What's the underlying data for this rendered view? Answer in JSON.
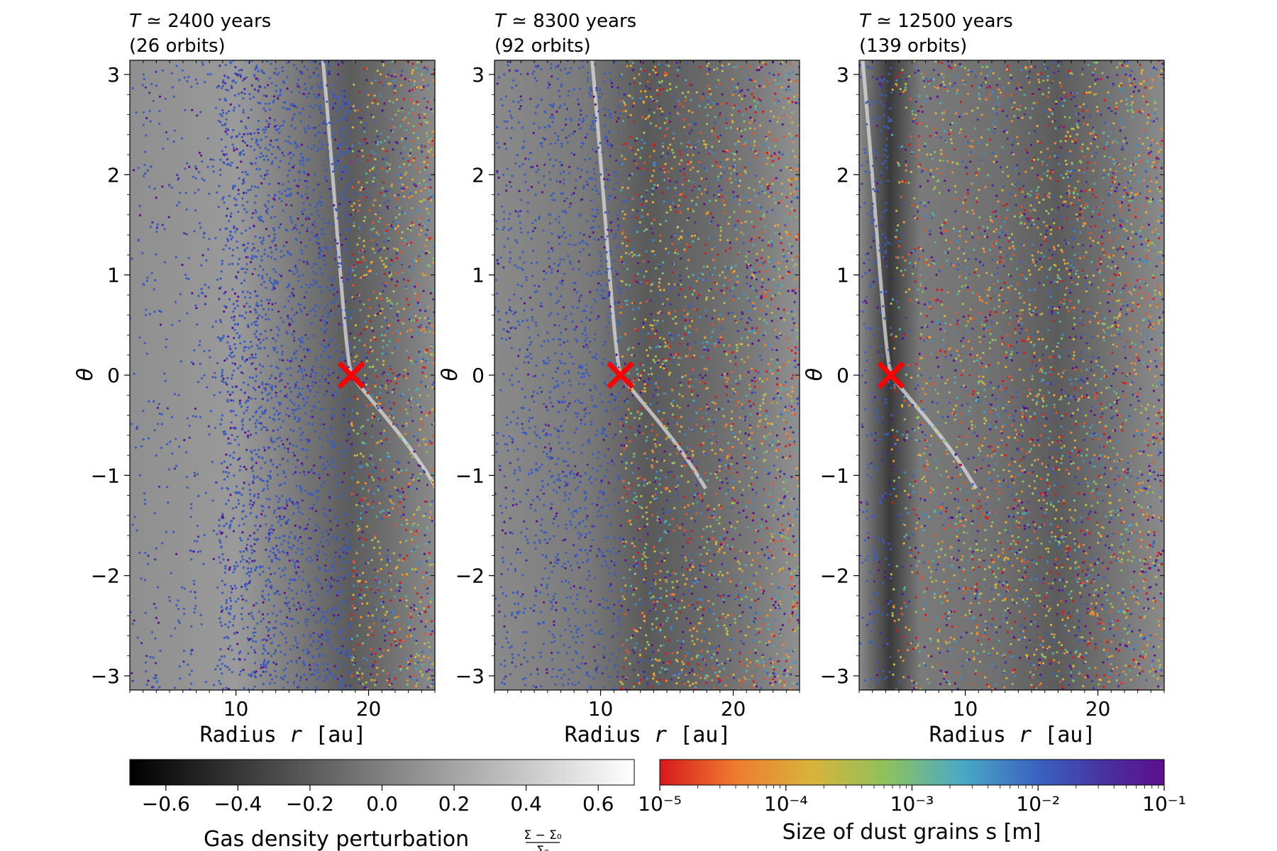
{
  "chart_data": {
    "type": "scatter",
    "panels": [
      {
        "title_time": "2400 years",
        "title_orbits": "(26 orbits)",
        "planet": {
          "r": 18.7,
          "theta": 0.0
        },
        "xlabel": "Radius r [au]",
        "ylabel": "θ",
        "xticks": [
          10,
          20
        ],
        "yticks": [
          -3,
          -2,
          -1,
          0,
          1,
          2,
          3
        ],
        "xlim": [
          2,
          25
        ],
        "ylim": [
          -3.14159,
          3.14159
        ]
      },
      {
        "title_time": "8300 years",
        "title_orbits": "(92 orbits)",
        "planet": {
          "r": 11.5,
          "theta": 0.0
        },
        "xlabel": "Radius r [au]",
        "ylabel": "θ",
        "xticks": [
          10,
          20
        ],
        "yticks": [
          -3,
          -2,
          -1,
          0,
          1,
          2,
          3
        ],
        "xlim": [
          2,
          25
        ],
        "ylim": [
          -3.14159,
          3.14159
        ]
      },
      {
        "title_time": "12500 years",
        "title_orbits": "(139 orbits)",
        "planet": {
          "r": 4.4,
          "theta": 0.0
        },
        "xlabel": "Radius r [au]",
        "ylabel": "θ",
        "xticks": [
          10,
          20
        ],
        "yticks": [
          -3,
          -2,
          -1,
          0,
          1,
          2,
          3
        ],
        "xlim": [
          2,
          25
        ],
        "ylim": [
          -3.14159,
          3.14159
        ]
      }
    ],
    "colorbar_gas": {
      "label": "Gas density perturbation",
      "frac_num": "Σ − Σ₀",
      "frac_den": "Σ₀",
      "range": [
        -0.7,
        0.7
      ],
      "ticks": [
        "−0.6",
        "−0.4",
        "−0.2",
        "0.0",
        "0.2",
        "0.4",
        "0.6"
      ]
    },
    "colorbar_dust": {
      "label": "Size of dust grains s [m]",
      "range_log10": [
        -5,
        -1
      ],
      "ticks": [
        "10⁻⁵",
        "10⁻⁴",
        "10⁻³",
        "10⁻²",
        "10⁻¹"
      ]
    },
    "colors": {
      "planet_marker": "#ff0000",
      "dust_small": "#d7191c",
      "dust_large": "#5e0e8f"
    }
  }
}
